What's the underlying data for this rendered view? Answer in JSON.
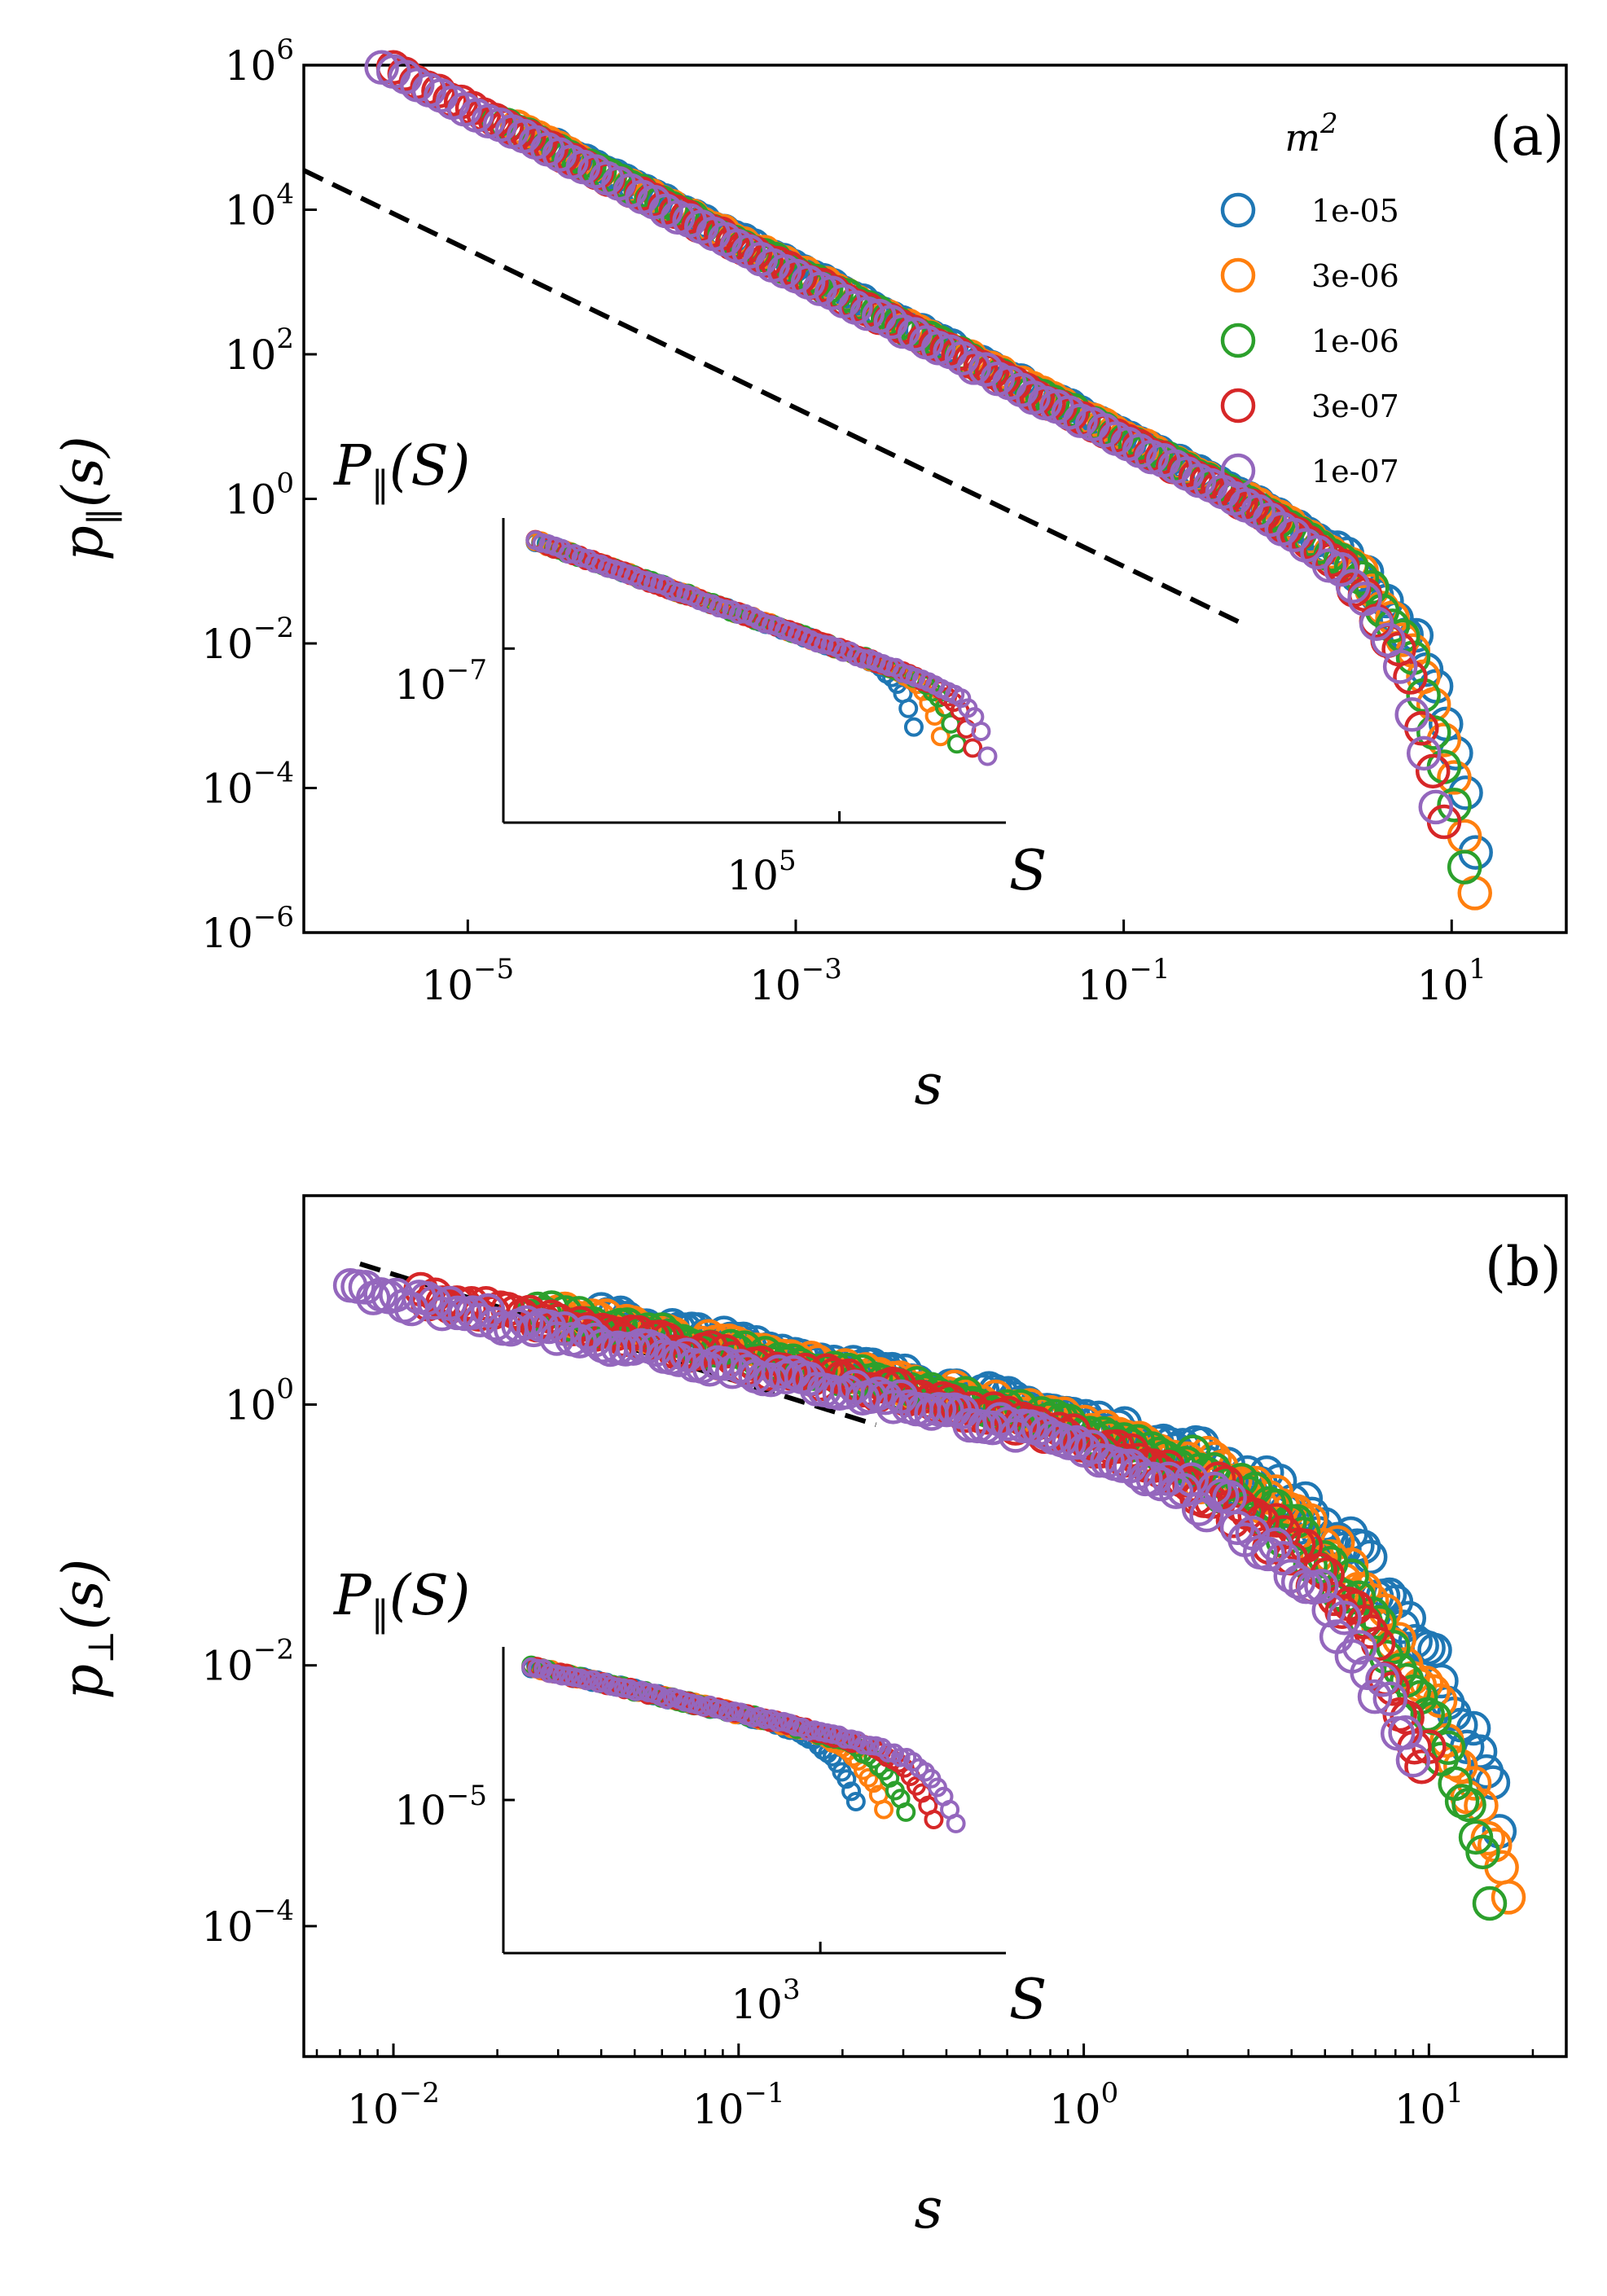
{
  "chart_data": [
    {
      "type": "scatter",
      "panel_label": "(a)",
      "xlabel": "s",
      "ylabel": {
        "main": "p",
        "sub": "‖",
        "arg": "(s)"
      },
      "xscale": "log",
      "yscale": "log",
      "xlim": [
        1e-06,
        50
      ],
      "ylim": [
        1e-06,
        1000000.0
      ],
      "xticks": [
        {
          "base": "10",
          "exp": "−5"
        },
        {
          "base": "10",
          "exp": "−3"
        },
        {
          "base": "10",
          "exp": "−1"
        },
        {
          "base": "10",
          "exp": "1"
        }
      ],
      "xtick_values": [
        1e-05,
        0.001,
        0.1,
        10
      ],
      "yticks": [
        {
          "base": "10",
          "exp": "−6"
        },
        {
          "base": "10",
          "exp": "−4"
        },
        {
          "base": "10",
          "exp": "−2"
        },
        {
          "base": "10",
          "exp": "0"
        },
        {
          "base": "10",
          "exp": "2"
        },
        {
          "base": "10",
          "exp": "4"
        },
        {
          "base": "10",
          "exp": "6"
        }
      ],
      "ytick_values": [
        1e-06,
        0.0001,
        0.01,
        1,
        100,
        10000,
        1000000
      ],
      "reference_line": {
        "style": "dashed",
        "x": [
          1e-06,
          0.5
        ],
        "y": [
          35000,
          0.02
        ]
      },
      "legend": {
        "title": "m",
        "title_sup": "2",
        "position": "upper-right",
        "entries": [
          "1e-05",
          "3e-06",
          "1e-06",
          "3e-07",
          "1e-07"
        ]
      },
      "series": [
        {
          "name": "1e-05",
          "color": "#1f77b4",
          "cutoff": 4,
          "amp": 1.0,
          "xmin": 3e-05,
          "xmax": 14
        },
        {
          "name": "3e-06",
          "color": "#ff7f0e",
          "cutoff": 3.5,
          "amp": 0.95,
          "xmin": 2e-05,
          "xmax": 16
        },
        {
          "name": "1e-06",
          "color": "#2ca02c",
          "cutoff": 3.2,
          "amp": 0.9,
          "xmin": 1.5e-05,
          "xmax": 12
        },
        {
          "name": "3e-07",
          "color": "#d62728",
          "cutoff": 2.7,
          "amp": 0.85,
          "xmin": 3e-06,
          "xmax": 9
        },
        {
          "name": "1e-07",
          "color": "#9467bd",
          "cutoff": 2.5,
          "amp": 0.8,
          "xmin": 1.3e-06,
          "xmax": 8
        }
      ],
      "inset": {
        "ylabel": {
          "main": "P",
          "sub": "‖",
          "arg": "(S)"
        },
        "xlabel": "S",
        "xtick": {
          "base": "10",
          "exp": "5"
        },
        "ytick": {
          "base": "10",
          "exp": "−7"
        },
        "xscale": "log",
        "yscale": "log",
        "xlim": [
          1,
          30000000.0
        ],
        "ylim": [
          1e-11,
          0.0001
        ],
        "xtick_value": 100000,
        "ytick_value": 1e-07,
        "cutoffs": {
          "1e-05": 800000,
          "3e-06": 2000000,
          "1e-06": 3500000,
          "3e-07": 6000000,
          "1e-07": 10000000
        }
      }
    },
    {
      "type": "scatter",
      "panel_label": "(b)",
      "xlabel": "s",
      "ylabel": {
        "main": "p",
        "sub": "⊥",
        "arg": "(s)"
      },
      "xscale": "log",
      "yscale": "log",
      "xlim": [
        0.0055,
        25
      ],
      "ylim": [
        1e-05,
        40
      ],
      "xticks": [
        {
          "base": "10",
          "exp": "−2"
        },
        {
          "base": "10",
          "exp": "−1"
        },
        {
          "base": "10",
          "exp": "0"
        },
        {
          "base": "10",
          "exp": "1"
        }
      ],
      "xtick_values": [
        0.01,
        0.1,
        1,
        10
      ],
      "yticks": [
        {
          "base": "10",
          "exp": "−4"
        },
        {
          "base": "10",
          "exp": "−2"
        },
        {
          "base": "10",
          "exp": "0"
        }
      ],
      "ytick_values": [
        0.0001,
        0.01,
        1
      ],
      "reference_line": {
        "style": "dashed",
        "x": [
          0.008,
          0.25
        ],
        "y": [
          12,
          0.7
        ]
      },
      "series": [
        {
          "name": "1e-05",
          "color": "#1f77b4",
          "cutoff": 4.2,
          "amp": 1.0,
          "xmin": 0.04,
          "xmax": 16
        },
        {
          "name": "3e-06",
          "color": "#ff7f0e",
          "cutoff": 3.7,
          "amp": 0.9,
          "xmin": 0.03,
          "xmax": 17
        },
        {
          "name": "1e-06",
          "color": "#2ca02c",
          "cutoff": 3.4,
          "amp": 0.85,
          "xmin": 0.025,
          "xmax": 15
        },
        {
          "name": "3e-07",
          "color": "#d62728",
          "cutoff": 3.0,
          "amp": 0.75,
          "xmin": 0.012,
          "xmax": 10
        },
        {
          "name": "1e-07",
          "color": "#9467bd",
          "cutoff": 2.8,
          "amp": 0.65,
          "xmin": 0.0075,
          "xmax": 9
        }
      ],
      "inset": {
        "ylabel": {
          "main": "P",
          "sub": "‖",
          "arg": "(S)"
        },
        "xlabel": "S",
        "xtick": {
          "base": "10",
          "exp": "3"
        },
        "ytick": {
          "base": "10",
          "exp": "−5"
        },
        "xscale": "log",
        "yscale": "log",
        "xlim": [
          3,
          30000
        ],
        "ylim": [
          1e-08,
          0.01
        ],
        "xtick_value": 1000,
        "ytick_value": 1e-05,
        "cutoffs": {
          "1e-05": 1200,
          "3e-06": 2000,
          "1e-06": 3000,
          "3e-07": 5000,
          "1e-07": 7500
        }
      }
    }
  ]
}
